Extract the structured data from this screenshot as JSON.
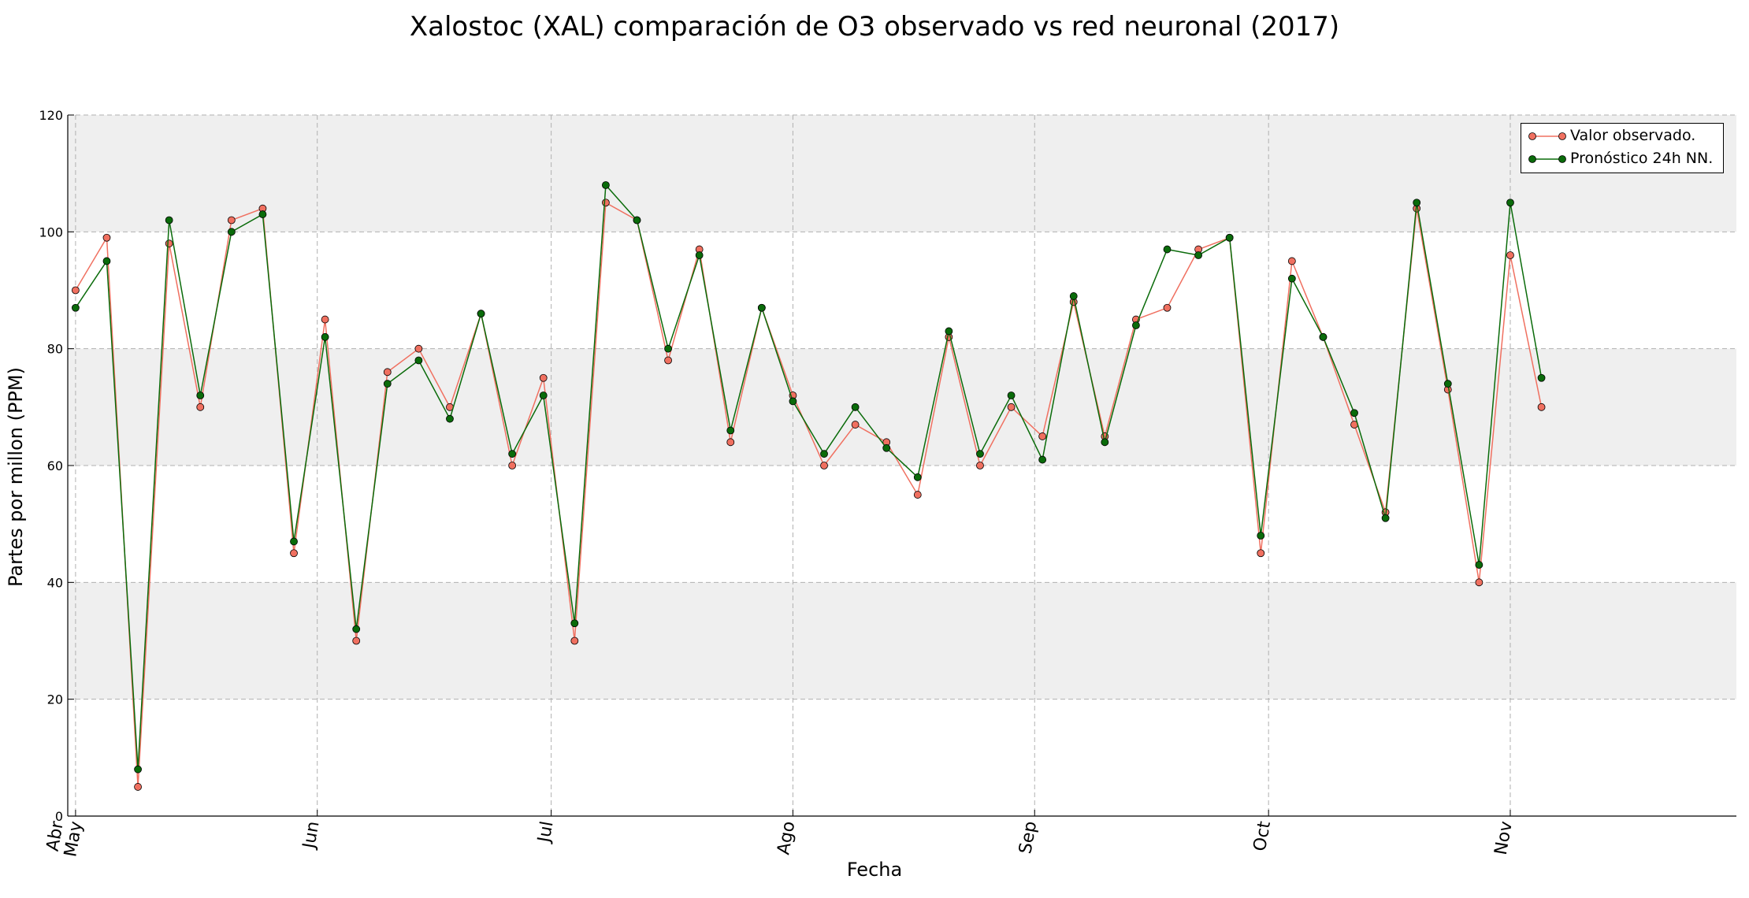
{
  "chart_data": {
    "type": "line",
    "title": "Xalostoc (XAL) comparación de O3 observado vs red neuronal (2017)",
    "xlabel": "Fecha",
    "ylabel": "Partes por millon (PPM)",
    "ylim": [
      0,
      120
    ],
    "yticks": [
      0,
      20,
      40,
      60,
      80,
      100,
      120
    ],
    "xlim": [
      "2017-04-30",
      "2017-11-30"
    ],
    "xticks": [
      {
        "label": "Abr",
        "date": "2017-04-30"
      },
      {
        "label": "May",
        "date": "2017-05-01"
      },
      {
        "label": "Jun",
        "date": "2017-06-01"
      },
      {
        "label": "Jul",
        "date": "2017-07-01"
      },
      {
        "label": "Ago",
        "date": "2017-08-01"
      },
      {
        "label": "Sep",
        "date": "2017-09-01"
      },
      {
        "label": "Oct",
        "date": "2017-10-01"
      },
      {
        "label": "Nov",
        "date": "2017-11-01"
      }
    ],
    "grid": true,
    "banded_background": true,
    "legend_position": "top-right",
    "series": [
      {
        "name": "Valor observado.",
        "color": "#f07060",
        "x": [
          "2017-05-01",
          "2017-05-05",
          "2017-05-09",
          "2017-05-13",
          "2017-05-17",
          "2017-05-21",
          "2017-05-25",
          "2017-05-29",
          "2017-06-02",
          "2017-06-06",
          "2017-06-10",
          "2017-06-14",
          "2017-06-18",
          "2017-06-22",
          "2017-06-26",
          "2017-06-30",
          "2017-07-04",
          "2017-07-08",
          "2017-07-12",
          "2017-07-16",
          "2017-07-20",
          "2017-07-24",
          "2017-07-28",
          "2017-08-01",
          "2017-08-05",
          "2017-08-09",
          "2017-08-13",
          "2017-08-17",
          "2017-08-21",
          "2017-08-25",
          "2017-08-29",
          "2017-09-02",
          "2017-09-06",
          "2017-09-10",
          "2017-09-14",
          "2017-09-18",
          "2017-09-22",
          "2017-09-26",
          "2017-09-30",
          "2017-10-04",
          "2017-10-08",
          "2017-10-12",
          "2017-10-16",
          "2017-10-20",
          "2017-10-24",
          "2017-10-28",
          "2017-11-01",
          "2017-11-05"
        ],
        "y": [
          90,
          99,
          5,
          98,
          70,
          102,
          104,
          45,
          85,
          30,
          76,
          80,
          70,
          86,
          60,
          75,
          30,
          105,
          102,
          78,
          97,
          64,
          87,
          72,
          60,
          67,
          64,
          55,
          82,
          60,
          70,
          65,
          88,
          65,
          85,
          87,
          97,
          99,
          45,
          95,
          82,
          67,
          52,
          104,
          73,
          40,
          96,
          70
        ]
      },
      {
        "name": "Pronóstico 24h NN.",
        "color": "#0a6b0a",
        "x": [
          "2017-05-01",
          "2017-05-05",
          "2017-05-09",
          "2017-05-13",
          "2017-05-17",
          "2017-05-21",
          "2017-05-25",
          "2017-05-29",
          "2017-06-02",
          "2017-06-06",
          "2017-06-10",
          "2017-06-14",
          "2017-06-18",
          "2017-06-22",
          "2017-06-26",
          "2017-06-30",
          "2017-07-04",
          "2017-07-08",
          "2017-07-12",
          "2017-07-16",
          "2017-07-20",
          "2017-07-24",
          "2017-07-28",
          "2017-08-01",
          "2017-08-05",
          "2017-08-09",
          "2017-08-13",
          "2017-08-17",
          "2017-08-21",
          "2017-08-25",
          "2017-08-29",
          "2017-09-02",
          "2017-09-06",
          "2017-09-10",
          "2017-09-14",
          "2017-09-18",
          "2017-09-22",
          "2017-09-26",
          "2017-09-30",
          "2017-10-04",
          "2017-10-08",
          "2017-10-12",
          "2017-10-16",
          "2017-10-20",
          "2017-10-24",
          "2017-10-28",
          "2017-11-01",
          "2017-11-05"
        ],
        "y": [
          87,
          95,
          8,
          102,
          72,
          100,
          103,
          47,
          82,
          32,
          74,
          78,
          68,
          86,
          62,
          72,
          33,
          108,
          102,
          80,
          96,
          66,
          87,
          71,
          62,
          70,
          63,
          58,
          83,
          62,
          72,
          61,
          89,
          64,
          84,
          97,
          96,
          99,
          48,
          92,
          82,
          69,
          51,
          105,
          74,
          43,
          105,
          75
        ]
      }
    ]
  }
}
